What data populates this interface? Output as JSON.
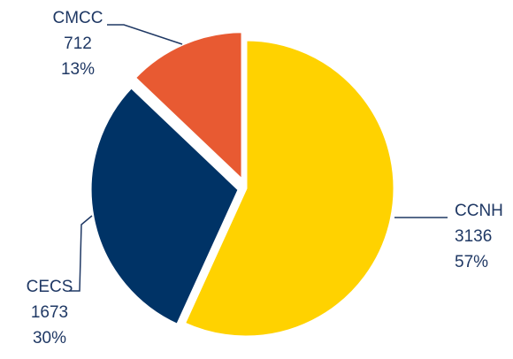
{
  "chart_data": {
    "type": "pie",
    "title": "",
    "slices": [
      {
        "name": "CCNH",
        "value": 3136,
        "percent": "57%",
        "color": "#ffd200"
      },
      {
        "name": "CECS",
        "value": 1673,
        "percent": "30%",
        "color": "#003366"
      },
      {
        "name": "CMCC",
        "value": 712,
        "percent": "13%",
        "color": "#e85a32"
      }
    ],
    "start_angle_deg": 0,
    "direction": "clockwise",
    "exploded": "CMCC and CECS slightly separated",
    "legend": "none",
    "data_labels": "outside with leader lines: name, value, percent"
  }
}
